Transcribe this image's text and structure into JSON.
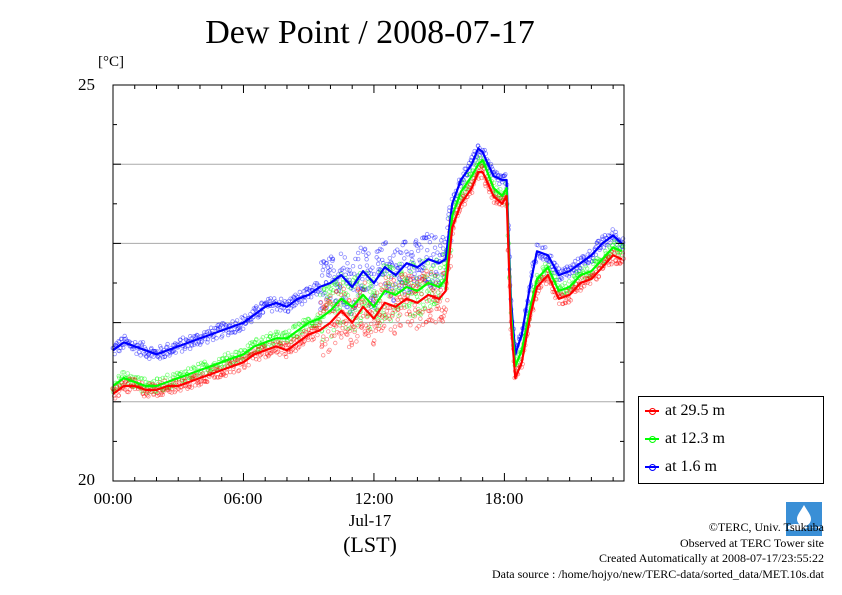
{
  "header": {
    "title": "Dew Point / 2008-07-17"
  },
  "axis": {
    "yunit": "[°C]",
    "xdate": "Jul-17",
    "xzone": "(LST)"
  },
  "credits": {
    "line1": "©TERC, Univ. Tsukuba",
    "line2": "Observed at TERC Tower site",
    "line3": "Created Automatically at 2008-07-17/23:55:22",
    "line4": "Data source : /home/hojyo/new/TERC-data/sorted_data/MET.10s.dat"
  },
  "chart_data": {
    "type": "line",
    "title": "Dew Point / 2008-07-17",
    "xlabel": "(LST)",
    "ylabel": "[°C]",
    "xlim": [
      0,
      23.5
    ],
    "ylim": [
      20,
      25
    ],
    "xticks": [
      {
        "value": 0,
        "label": "00:00"
      },
      {
        "value": 6,
        "label": "06:00"
      },
      {
        "value": 12,
        "label": "12:00"
      },
      {
        "value": 18,
        "label": "18:00"
      }
    ],
    "yticks": [
      {
        "value": 20,
        "label": "20"
      },
      {
        "value": 25,
        "label": "25"
      }
    ],
    "grid": true,
    "legend_position": "right-bottom",
    "series": [
      {
        "name": "at 29.5 m",
        "color": "#ff0000",
        "x": [
          0,
          0.5,
          1,
          1.5,
          2,
          2.5,
          3,
          3.5,
          4,
          4.5,
          5,
          5.5,
          6,
          6.5,
          7,
          7.5,
          8,
          8.5,
          9,
          9.5,
          10,
          10.5,
          11,
          11.5,
          12,
          12.5,
          13,
          13.5,
          14,
          14.5,
          15,
          15.3,
          15.6,
          16,
          16.5,
          16.8,
          17,
          17.5,
          17.9,
          18.1,
          18.3,
          18.5,
          18.8,
          19.2,
          19.5,
          20,
          20.5,
          21,
          21.5,
          22,
          22.5,
          23,
          23.4
        ],
        "values": [
          21.1,
          21.2,
          21.2,
          21.15,
          21.15,
          21.2,
          21.2,
          21.25,
          21.3,
          21.35,
          21.4,
          21.45,
          21.5,
          21.6,
          21.65,
          21.7,
          21.65,
          21.75,
          21.85,
          21.9,
          22.0,
          22.15,
          22.0,
          22.2,
          22.05,
          22.25,
          22.2,
          22.3,
          22.25,
          22.35,
          22.3,
          22.4,
          23.2,
          23.5,
          23.7,
          23.9,
          23.9,
          23.6,
          23.5,
          23.6,
          22.0,
          21.3,
          21.5,
          22.1,
          22.45,
          22.6,
          22.3,
          22.35,
          22.5,
          22.55,
          22.7,
          22.85,
          22.8
        ]
      },
      {
        "name": "at 12.3 m",
        "color": "#00ff00",
        "x": [
          0,
          0.5,
          1,
          1.5,
          2,
          2.5,
          3,
          3.5,
          4,
          4.5,
          5,
          5.5,
          6,
          6.5,
          7,
          7.5,
          8,
          8.5,
          9,
          9.5,
          10,
          10.5,
          11,
          11.5,
          12,
          12.5,
          13,
          13.5,
          14,
          14.5,
          15,
          15.3,
          15.6,
          16,
          16.5,
          16.8,
          17,
          17.5,
          17.9,
          18.1,
          18.3,
          18.5,
          18.8,
          19.2,
          19.5,
          20,
          20.5,
          21,
          21.5,
          22,
          22.5,
          23,
          23.4
        ],
        "values": [
          21.2,
          21.3,
          21.25,
          21.2,
          21.2,
          21.25,
          21.3,
          21.35,
          21.4,
          21.45,
          21.5,
          21.55,
          21.6,
          21.7,
          21.75,
          21.8,
          21.8,
          21.9,
          22.0,
          22.05,
          22.15,
          22.3,
          22.2,
          22.35,
          22.2,
          22.4,
          22.35,
          22.45,
          22.4,
          22.5,
          22.45,
          22.55,
          23.35,
          23.65,
          23.85,
          24.0,
          24.05,
          23.7,
          23.6,
          23.7,
          22.15,
          21.45,
          21.65,
          22.2,
          22.55,
          22.7,
          22.4,
          22.45,
          22.6,
          22.65,
          22.8,
          22.95,
          22.9
        ]
      },
      {
        "name": "at 1.6 m",
        "color": "#0000ff",
        "x": [
          0,
          0.5,
          1,
          1.5,
          2,
          2.5,
          3,
          3.5,
          4,
          4.5,
          5,
          5.5,
          6,
          6.5,
          7,
          7.5,
          8,
          8.5,
          9,
          9.5,
          10,
          10.5,
          11,
          11.5,
          12,
          12.5,
          13,
          13.5,
          14,
          14.5,
          15,
          15.3,
          15.6,
          16,
          16.5,
          16.8,
          17,
          17.5,
          17.9,
          18.1,
          18.3,
          18.5,
          18.8,
          19.2,
          19.5,
          20,
          20.5,
          21,
          21.5,
          22,
          22.5,
          23,
          23.4
        ],
        "values": [
          21.65,
          21.75,
          21.7,
          21.65,
          21.6,
          21.65,
          21.7,
          21.75,
          21.8,
          21.85,
          21.9,
          21.95,
          22.0,
          22.1,
          22.2,
          22.25,
          22.2,
          22.3,
          22.35,
          22.45,
          22.5,
          22.6,
          22.45,
          22.65,
          22.5,
          22.7,
          22.6,
          22.75,
          22.7,
          22.8,
          22.75,
          22.8,
          23.5,
          23.8,
          24.0,
          24.2,
          24.15,
          23.85,
          23.8,
          23.8,
          22.3,
          21.6,
          21.85,
          22.5,
          22.9,
          22.85,
          22.6,
          22.65,
          22.75,
          22.85,
          23.0,
          23.1,
          23.0
        ]
      }
    ]
  }
}
